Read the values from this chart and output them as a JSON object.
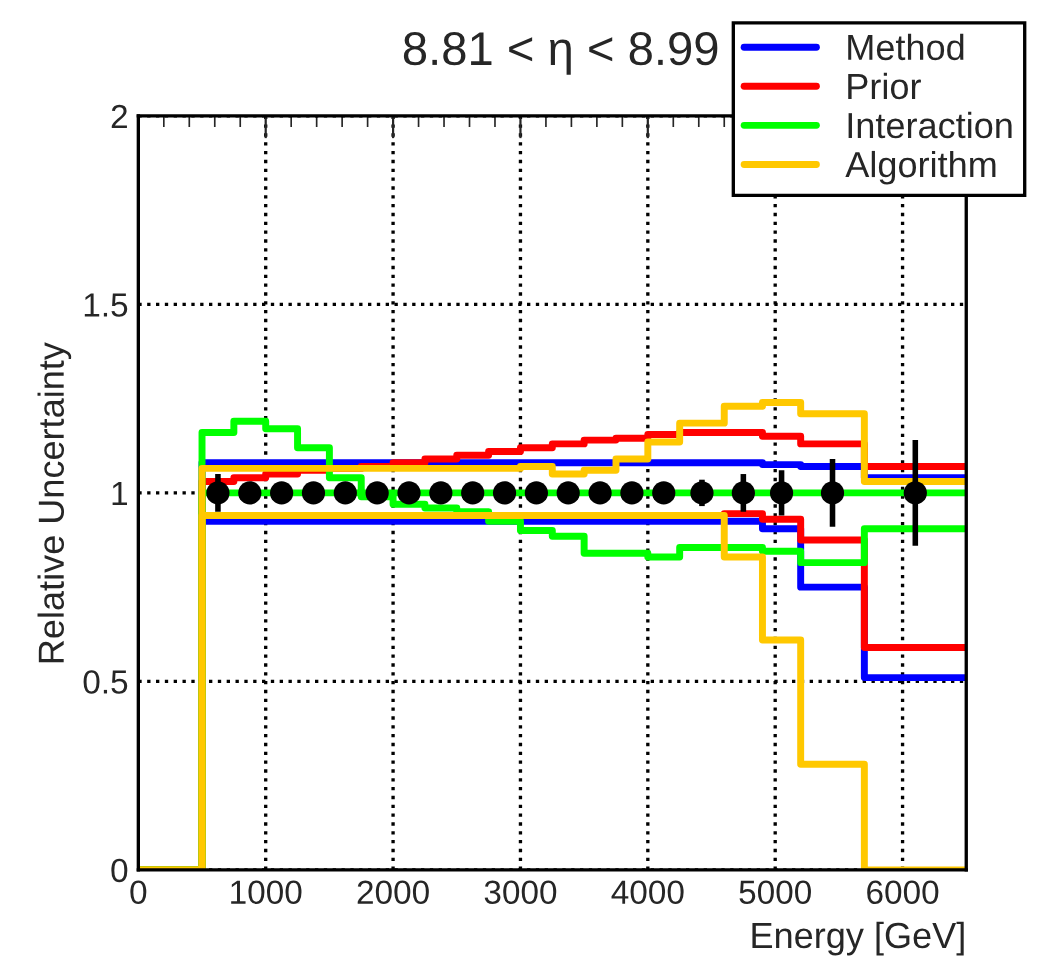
{
  "chart_data": {
    "type": "step",
    "title": "8.81 < η < 8.99",
    "xlabel": "Energy [GeV]",
    "ylabel": "Relative Uncertainty",
    "x": [
      0,
      500,
      750,
      1000,
      1250,
      1500,
      1750,
      2000,
      2250,
      2500,
      2750,
      3000,
      3250,
      3500,
      3750,
      4000,
      4250,
      4600,
      4900,
      5200,
      5700,
      6500
    ],
    "series": [
      {
        "name": "Method",
        "color": "#0000ff",
        "values": [
          0,
          1.08,
          1.08,
          1.08,
          1.08,
          1.08,
          1.08,
          1.08,
          1.08,
          1.08,
          1.08,
          1.08,
          1.08,
          1.08,
          1.08,
          1.08,
          1.08,
          1.08,
          1.075,
          1.07,
          1.04,
          1.04
        ]
      },
      {
        "color": "#0000ff",
        "values": [
          0,
          0.925,
          0.925,
          0.925,
          0.925,
          0.925,
          0.925,
          0.925,
          0.925,
          0.925,
          0.925,
          0.925,
          0.925,
          0.925,
          0.925,
          0.925,
          0.925,
          0.925,
          0.905,
          0.75,
          0.51,
          0.51
        ]
      },
      {
        "name": "Prior",
        "color": "#ff0000",
        "values": [
          0,
          1.03,
          1.04,
          1.05,
          1.06,
          1.065,
          1.07,
          1.08,
          1.09,
          1.1,
          1.11,
          1.12,
          1.13,
          1.14,
          1.145,
          1.155,
          1.16,
          1.16,
          1.15,
          1.13,
          1.07,
          1.07
        ]
      },
      {
        "color": "#ff0000",
        "values": [
          null,
          null,
          null,
          null,
          null,
          null,
          null,
          null,
          null,
          null,
          null,
          null,
          null,
          null,
          null,
          null,
          null,
          0.945,
          0.93,
          0.875,
          0.59,
          0.59
        ]
      },
      {
        "name": "Interaction",
        "color": "#00ff00",
        "values": [
          0,
          1.16,
          1.19,
          1.17,
          1.12,
          1.04,
          0.99,
          0.97,
          0.96,
          0.95,
          0.925,
          0.9,
          0.885,
          0.84,
          0.84,
          0.83,
          0.855,
          0.855,
          0.845,
          0.815,
          0.905,
          0.905
        ]
      },
      {
        "color": "#00ff00",
        "values": [
          0,
          1.0,
          1.0,
          1.0,
          1.0,
          1.0,
          1.0,
          1.0,
          1.0,
          1.0,
          1.0,
          1.0,
          1.0,
          1.0,
          1.0,
          1.0,
          1.0,
          1.0,
          1.0,
          1.0,
          1.0,
          1.0
        ]
      },
      {
        "name": "Algorithm",
        "color": "#ffc800",
        "values": [
          0,
          1.065,
          1.065,
          1.065,
          1.065,
          1.065,
          1.065,
          1.065,
          1.065,
          1.065,
          1.065,
          1.07,
          1.05,
          1.06,
          1.09,
          1.135,
          1.185,
          1.23,
          1.24,
          1.21,
          1.03,
          1.03
        ]
      },
      {
        "color": "#ffc800",
        "values": [
          0,
          0.94,
          0.94,
          0.94,
          0.94,
          0.94,
          0.94,
          0.94,
          0.94,
          0.94,
          0.94,
          0.94,
          0.94,
          0.94,
          0.94,
          0.94,
          0.94,
          0.83,
          0.61,
          0.28,
          0,
          0
        ]
      },
      {
        "type": "scatter",
        "color": "#000000",
        "marker": "circle",
        "x": [
          625,
          875,
          1125,
          1375,
          1625,
          1875,
          2125,
          2375,
          2625,
          2875,
          3125,
          3375,
          3625,
          3875,
          4125,
          4425,
          4750,
          5050,
          5450,
          6100
        ],
        "values": [
          1,
          1,
          1,
          1,
          1,
          1,
          1,
          1,
          1,
          1,
          1,
          1,
          1,
          1,
          1,
          1,
          1,
          1,
          1,
          1
        ],
        "errors": [
          0.05,
          0.02,
          0.02,
          0.02,
          0.02,
          0.02,
          0.02,
          0.02,
          0.02,
          0.02,
          0.02,
          0.02,
          0.02,
          0.02,
          0.025,
          0.035,
          0.05,
          0.06,
          0.09,
          0.14
        ]
      }
    ],
    "xlim": [
      0,
      6500
    ],
    "xticks": [
      0,
      1000,
      2000,
      3000,
      4000,
      5000,
      6000
    ],
    "ylim": [
      0,
      2
    ],
    "yticks": [
      0,
      0.5,
      1,
      1.5,
      2
    ],
    "grid": true,
    "legend": "top right",
    "line_style": "solid"
  }
}
